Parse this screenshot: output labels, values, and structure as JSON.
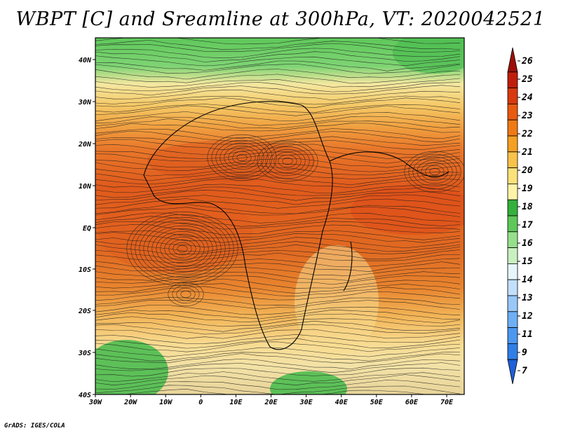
{
  "title": "WBPT [C] and Sreamline at 300hPa, VT: 2020042521",
  "credit": "GrADS: IGES/COLA",
  "map": {
    "lat_labels": [
      "40N",
      "30N",
      "20N",
      "10N",
      "EQ",
      "10S",
      "20S",
      "30S",
      "40S"
    ],
    "lon_labels": [
      "30W",
      "20W",
      "10W",
      "0",
      "10E",
      "20E",
      "30E",
      "40E",
      "50E",
      "60E",
      "70E"
    ]
  },
  "colorbar": {
    "labels": [
      "7",
      "9",
      "11",
      "12",
      "13",
      "14",
      "15",
      "16",
      "17",
      "18",
      "19",
      "20",
      "21",
      "22",
      "23",
      "24",
      "25",
      "26"
    ],
    "colors": [
      "#1f5fd8",
      "#2f7ee8",
      "#4c97f0",
      "#6eaff5",
      "#98c8f8",
      "#c2e0fb",
      "#e6f6fb",
      "#c8f0c0",
      "#96e08c",
      "#5ec85a",
      "#34b03c",
      "#fff3a8",
      "#fde17a",
      "#f9c24a",
      "#f5a022",
      "#ef7a14",
      "#e85a10",
      "#d83a0e",
      "#c01e0c",
      "#9e0e08"
    ]
  },
  "chart_data": {
    "type": "heatmap",
    "title": "WBPT [C] and Sreamline at 300hPa, VT: 2020042521",
    "lon_range": [
      "30W",
      "75E"
    ],
    "lat_range": [
      "40S",
      "45N"
    ],
    "legend_levels": [
      7,
      9,
      11,
      12,
      13,
      14,
      15,
      16,
      17,
      18,
      19,
      20,
      21,
      22,
      23,
      24,
      25,
      26
    ],
    "overlay": "streamlines"
  }
}
